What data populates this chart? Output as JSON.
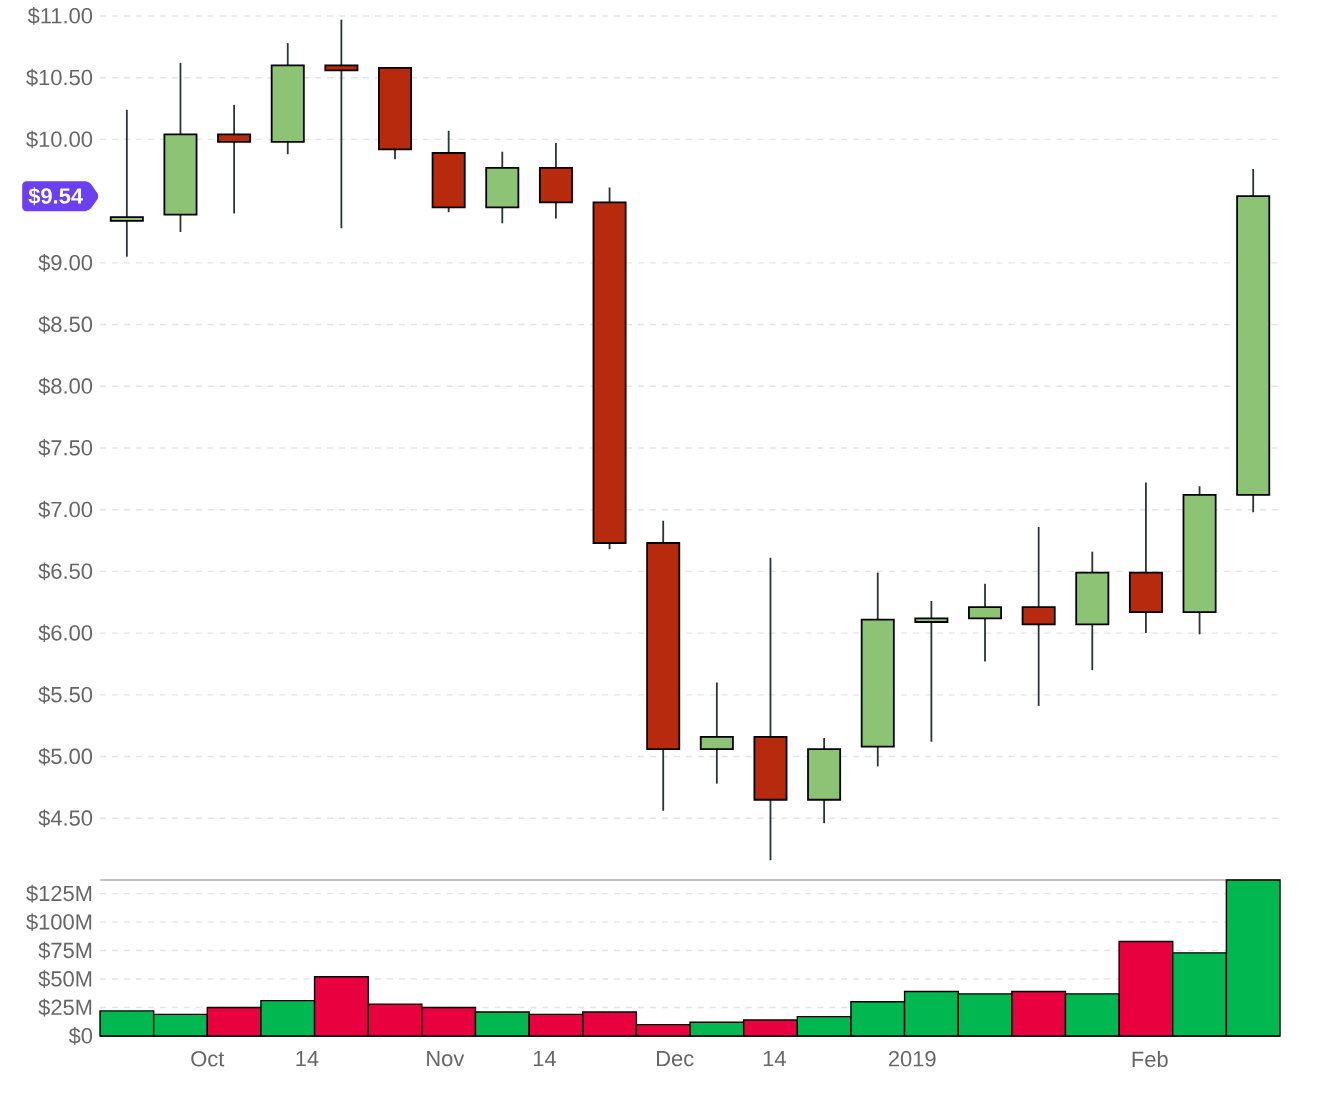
{
  "chart_data": [
    {
      "type": "candlestick",
      "x": [
        "2018-09-20T12:00",
        "2018-09-27T12:00",
        "2018-10-04T12:00",
        "2018-10-11T12:00",
        "2018-10-18T12:00",
        "2018-10-25T12:00",
        "2018-11-01T12:00",
        "2018-11-08T12:00",
        "2018-11-15T12:00",
        "2018-11-22T12:00",
        "2018-11-29T12:00",
        "2018-12-06T12:00",
        "2018-12-13T12:00",
        "2018-12-20T12:00",
        "2018-12-27T12:00",
        "2019-01-03T12:00",
        "2019-01-10T12:00",
        "2019-01-17T12:00",
        "2019-01-24T12:00",
        "2019-01-31T12:00",
        "2019-02-07T12:00",
        "2019-02-14T12:00"
      ],
      "ohlc": [
        [
          9.34,
          10.24,
          9.05,
          9.37
        ],
        [
          9.39,
          10.62,
          9.25,
          10.04
        ],
        [
          10.04,
          10.28,
          9.4,
          9.98
        ],
        [
          9.98,
          10.78,
          9.88,
          10.6
        ],
        [
          10.6,
          10.97,
          9.28,
          10.56
        ],
        [
          10.58,
          10.58,
          9.84,
          9.92
        ],
        [
          9.89,
          10.07,
          9.41,
          9.45
        ],
        [
          9.45,
          9.9,
          9.32,
          9.77
        ],
        [
          9.77,
          9.97,
          9.36,
          9.49
        ],
        [
          9.49,
          9.61,
          6.68,
          6.73
        ],
        [
          6.73,
          6.91,
          4.56,
          5.06
        ],
        [
          5.06,
          5.6,
          4.78,
          5.16
        ],
        [
          5.16,
          6.61,
          4.16,
          4.65
        ],
        [
          4.65,
          5.15,
          4.46,
          5.06
        ],
        [
          5.08,
          6.49,
          4.92,
          6.11
        ],
        [
          6.09,
          6.26,
          5.12,
          6.12
        ],
        [
          6.12,
          6.4,
          5.77,
          6.21
        ],
        [
          6.21,
          6.86,
          5.41,
          6.07
        ],
        [
          6.07,
          6.66,
          5.7,
          6.49
        ],
        [
          6.49,
          7.22,
          6.0,
          6.17
        ],
        [
          6.17,
          7.19,
          5.99,
          7.12
        ],
        [
          7.12,
          9.76,
          6.98,
          9.54
        ]
      ],
      "colors": [
        "#8dc374",
        "#8dc374",
        "#b82a0e",
        "#8dc374",
        "#b82a0e",
        "#b82a0e",
        "#b82a0e",
        "#8dc374",
        "#b82a0e",
        "#b82a0e",
        "#b82a0e",
        "#8dc374",
        "#b82a0e",
        "#8dc374",
        "#8dc374",
        "#8dc374",
        "#8dc374",
        "#b82a0e",
        "#8dc374",
        "#b82a0e",
        "#8dc374",
        "#8dc374"
      ],
      "xlim": [
        "2018-09-17",
        "2019-02-18"
      ],
      "ylim": [
        4.0,
        11.0
      ],
      "yticks": [
        {
          "value": 4.5,
          "label": "$4.50"
        },
        {
          "value": 5,
          "label": "$5.00"
        },
        {
          "value": 5.5,
          "label": "$5.50"
        },
        {
          "value": 6,
          "label": "$6.00"
        },
        {
          "value": 6.5,
          "label": "$6.50"
        },
        {
          "value": 7,
          "label": "$7.00"
        },
        {
          "value": 7.5,
          "label": "$7.50"
        },
        {
          "value": 8,
          "label": "$8.00"
        },
        {
          "value": 8.5,
          "label": "$8.50"
        },
        {
          "value": 9,
          "label": "$9.00"
        },
        {
          "value": 10,
          "label": "$10.00"
        },
        {
          "value": 10.5,
          "label": "$10.50"
        },
        {
          "value": 11,
          "label": "$11.00"
        }
      ],
      "grid": "y",
      "tick_labels": "y",
      "annotations": [
        "$9.54"
      ]
    },
    {
      "type": "bar",
      "x": [
        "2018-09-20T12:00",
        "2018-09-27T12:00",
        "2018-10-04T12:00",
        "2018-10-11T12:00",
        "2018-10-18T12:00",
        "2018-10-25T12:00",
        "2018-11-01T12:00",
        "2018-11-08T12:00",
        "2018-11-15T12:00",
        "2018-11-22T12:00",
        "2018-11-29T12:00",
        "2018-12-06T12:00",
        "2018-12-13T12:00",
        "2018-12-20T12:00",
        "2018-12-27T12:00",
        "2019-01-03T12:00",
        "2019-01-10T12:00",
        "2019-01-17T12:00",
        "2019-01-24T12:00",
        "2019-01-31T12:00",
        "2019-02-07T12:00",
        "2019-02-14T12:00"
      ],
      "values": [
        22,
        19,
        25,
        31,
        52,
        28,
        25,
        21,
        19,
        21,
        10,
        12,
        14,
        17,
        30,
        39,
        37,
        39,
        37,
        83,
        73,
        137
      ],
      "colors": [
        "#00b84f",
        "#00b84f",
        "#e8003f",
        "#00b84f",
        "#e8003f",
        "#e8003f",
        "#e8003f",
        "#00b84f",
        "#e8003f",
        "#e8003f",
        "#e8003f",
        "#00b84f",
        "#e8003f",
        "#00b84f",
        "#00b84f",
        "#00b84f",
        "#00b84f",
        "#e8003f",
        "#00b84f",
        "#e8003f",
        "#00b84f",
        "#00b84f"
      ],
      "xlim": [
        "2018-09-17",
        "2019-02-18"
      ],
      "xticks": [
        {
          "value": "2018-10-01",
          "label": "Oct"
        },
        {
          "value": "2018-10-14",
          "label": "14"
        },
        {
          "value": "2018-11-01",
          "label": "Nov"
        },
        {
          "value": "2018-11-14",
          "label": "14"
        },
        {
          "value": "2018-12-01",
          "label": "Dec"
        },
        {
          "value": "2018-12-14",
          "label": "14"
        },
        {
          "value": "2019-01-01",
          "label": "2019"
        },
        {
          "value": "2019-02-01",
          "label": "Feb"
        }
      ],
      "ylim": [
        0,
        137
      ],
      "yticks": [
        {
          "value": 0,
          "label": "$0"
        },
        {
          "value": 25,
          "label": "$25M"
        },
        {
          "value": 50,
          "label": "$50M"
        },
        {
          "value": 75,
          "label": "$75M"
        },
        {
          "value": 100,
          "label": "$100M"
        },
        {
          "value": 125,
          "label": "$125M"
        }
      ],
      "grid": "y"
    }
  ]
}
